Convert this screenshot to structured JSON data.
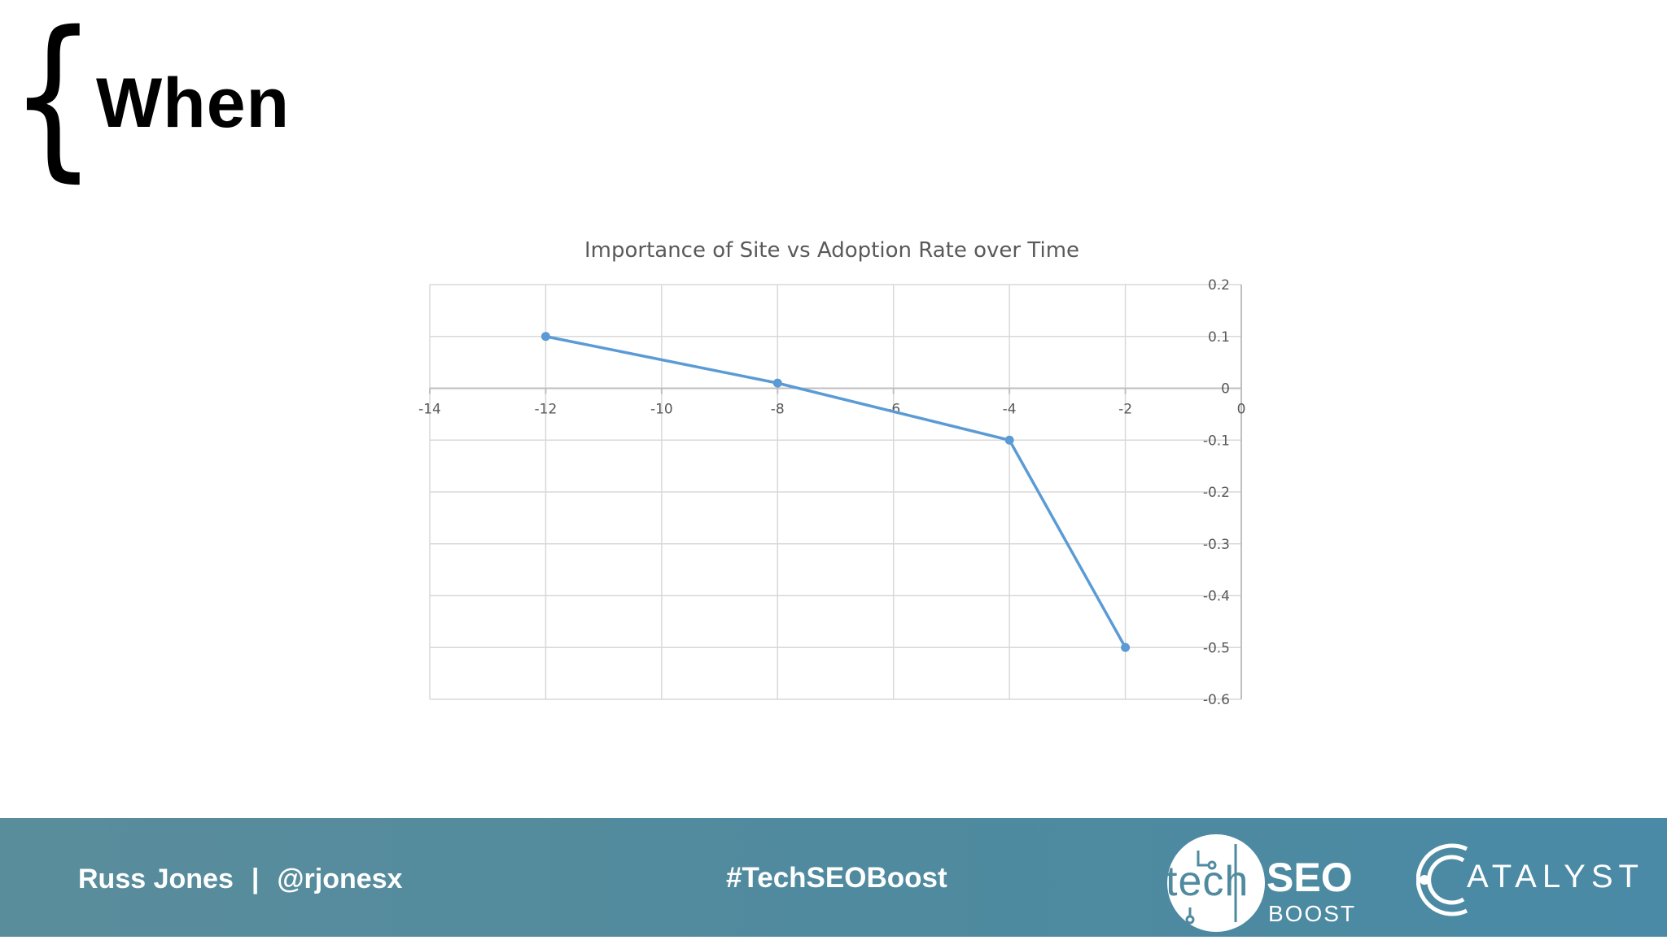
{
  "slide": {
    "brace": "{",
    "title": "When"
  },
  "chart_data": {
    "type": "line",
    "title": "Importance of Site vs Adoption Rate over Time",
    "xlabel": "",
    "ylabel": "",
    "x": [
      -12,
      -8,
      -4,
      -2
    ],
    "series": [
      {
        "values": [
          0.1,
          0.01,
          -0.1,
          -0.5
        ]
      }
    ],
    "xlim": [
      -14,
      0
    ],
    "ylim": [
      -0.6,
      0.2
    ],
    "x_ticks": [
      "-14",
      "-12",
      "-10",
      "-8",
      "-6",
      "-4",
      "-2",
      "0"
    ],
    "y_ticks": [
      "0.2",
      "0.1",
      "0",
      "-0.1",
      "-0.2",
      "-0.3",
      "-0.4",
      "-0.5",
      "-0.6"
    ],
    "grid": true,
    "legend": "none",
    "colors": {
      "line": "#5b9bd5",
      "grid": "#d9d9d9",
      "axis": "#bfbfbf",
      "text": "#595959"
    }
  },
  "footer": {
    "author": "Russ Jones",
    "separator": "|",
    "handle": "@rjonesx",
    "hashtag": "#TechSEOBoost",
    "logo_tech": "tech",
    "logo_seo": "SEO",
    "logo_boost": "BOOST",
    "catalyst": "ATALYST",
    "colors": {
      "band": "#4f8a9e",
      "text": "#ffffff"
    }
  }
}
